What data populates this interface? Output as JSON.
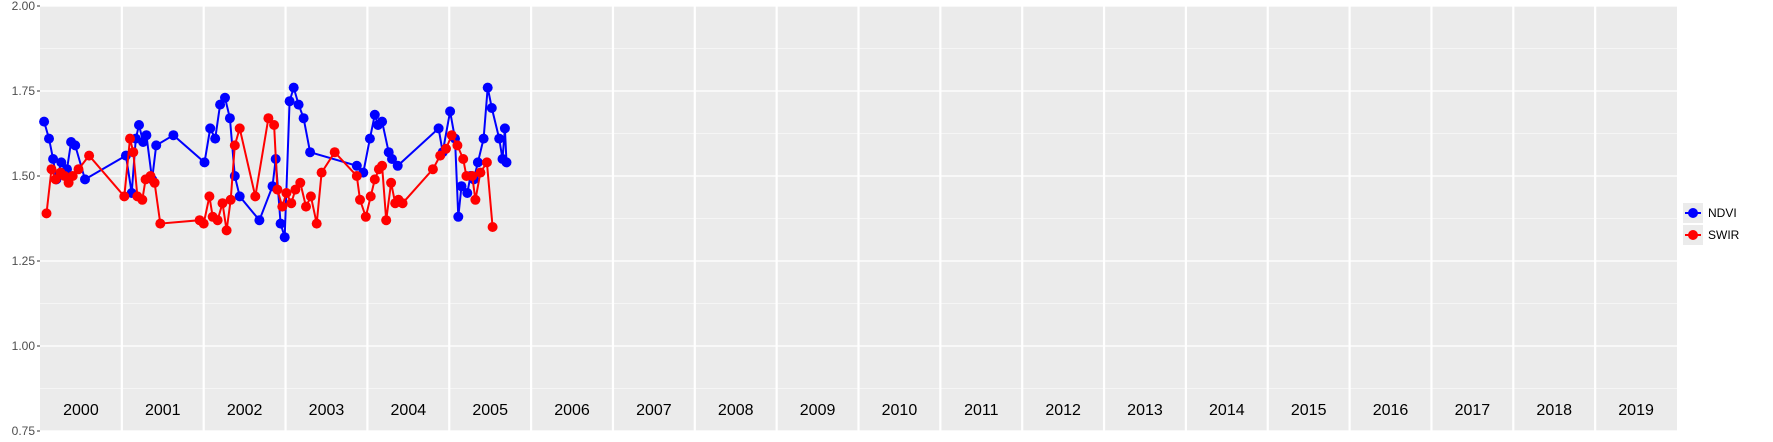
{
  "chart_data": {
    "type": "line",
    "title": "",
    "xlabel": "",
    "ylabel": "",
    "ylim": [
      0.75,
      2.0
    ],
    "y_ticks": [
      "0.75",
      "1.00",
      "1.25",
      "1.50",
      "1.75",
      "2.00"
    ],
    "grid": true,
    "legend_position": "right",
    "year_labels": [
      "2000",
      "2001",
      "2002",
      "2003",
      "2004",
      "2005",
      "2006",
      "2007",
      "2008",
      "2009",
      "2010",
      "2011",
      "2012",
      "2013",
      "2014",
      "2015",
      "2016",
      "2017",
      "2018",
      "2019"
    ],
    "series": [
      {
        "name": "NDVI",
        "color": "#0000ff",
        "x": [
          2000.05,
          2000.11,
          2000.16,
          2000.2,
          2000.26,
          2000.33,
          2000.38,
          2000.43,
          2000.55,
          2001.05,
          2001.12,
          2001.17,
          2001.21,
          2001.26,
          2001.3,
          2001.37,
          2001.42,
          2001.63,
          2002.01,
          2002.08,
          2002.14,
          2002.2,
          2002.26,
          2002.32,
          2002.38,
          2002.44,
          2002.68,
          2002.84,
          2002.88,
          2002.94,
          2002.99,
          2003.05,
          2003.1,
          2003.16,
          2003.22,
          2003.3,
          2003.87,
          2003.95,
          2004.03,
          2004.09,
          2004.13,
          2004.18,
          2004.26,
          2004.3,
          2004.37,
          2004.87,
          2004.92,
          2005.01,
          2005.07,
          2005.11,
          2005.15,
          2005.22,
          2005.26,
          2005.3,
          2005.35,
          2005.42,
          2005.47,
          2005.52,
          2005.61,
          2005.65,
          2005.68,
          2005.7
        ],
        "y": [
          1.66,
          1.61,
          1.55,
          1.49,
          1.54,
          1.52,
          1.6,
          1.59,
          1.49,
          1.56,
          1.45,
          1.61,
          1.65,
          1.6,
          1.62,
          1.49,
          1.59,
          1.62,
          1.54,
          1.64,
          1.61,
          1.71,
          1.73,
          1.67,
          1.5,
          1.44,
          1.37,
          1.47,
          1.55,
          1.36,
          1.32,
          1.72,
          1.76,
          1.71,
          1.67,
          1.57,
          1.53,
          1.51,
          1.61,
          1.68,
          1.65,
          1.66,
          1.57,
          1.55,
          1.53,
          1.64,
          1.57,
          1.69,
          1.61,
          1.38,
          1.47,
          1.45,
          1.5,
          1.49,
          1.54,
          1.61,
          1.76,
          1.7,
          1.61,
          1.55,
          1.64,
          1.54
        ]
      },
      {
        "name": "SWIR",
        "color": "#ff0000",
        "x": [
          2000.08,
          2000.14,
          2000.19,
          2000.25,
          2000.3,
          2000.35,
          2000.4,
          2000.47,
          2000.6,
          2001.03,
          2001.1,
          2001.14,
          2001.19,
          2001.25,
          2001.29,
          2001.35,
          2001.4,
          2001.47,
          2001.95,
          2002.0,
          2002.07,
          2002.11,
          2002.17,
          2002.23,
          2002.28,
          2002.33,
          2002.38,
          2002.44,
          2002.63,
          2002.79,
          2002.86,
          2002.9,
          2002.96,
          2003.01,
          2003.07,
          2003.12,
          2003.18,
          2003.25,
          2003.31,
          2003.38,
          2003.44,
          2003.6,
          2003.87,
          2003.91,
          2003.98,
          2004.04,
          2004.09,
          2004.14,
          2004.18,
          2004.23,
          2004.29,
          2004.34,
          2004.38,
          2004.43,
          2004.8,
          2004.89,
          2004.96,
          2005.03,
          2005.1,
          2005.17,
          2005.21,
          2005.28,
          2005.32,
          2005.38,
          2005.46,
          2005.53
        ],
        "y": [
          1.39,
          1.52,
          1.49,
          1.51,
          1.5,
          1.48,
          1.5,
          1.52,
          1.56,
          1.44,
          1.61,
          1.57,
          1.44,
          1.43,
          1.49,
          1.5,
          1.48,
          1.36,
          1.37,
          1.36,
          1.44,
          1.38,
          1.37,
          1.42,
          1.34,
          1.43,
          1.59,
          1.64,
          1.44,
          1.67,
          1.65,
          1.46,
          1.41,
          1.45,
          1.42,
          1.46,
          1.48,
          1.41,
          1.44,
          1.36,
          1.51,
          1.57,
          1.5,
          1.43,
          1.38,
          1.44,
          1.49,
          1.52,
          1.53,
          1.37,
          1.48,
          1.42,
          1.43,
          1.42,
          1.52,
          1.56,
          1.58,
          1.62,
          1.59,
          1.55,
          1.5,
          1.5,
          1.43,
          1.51,
          1.54,
          1.35
        ]
      }
    ]
  }
}
